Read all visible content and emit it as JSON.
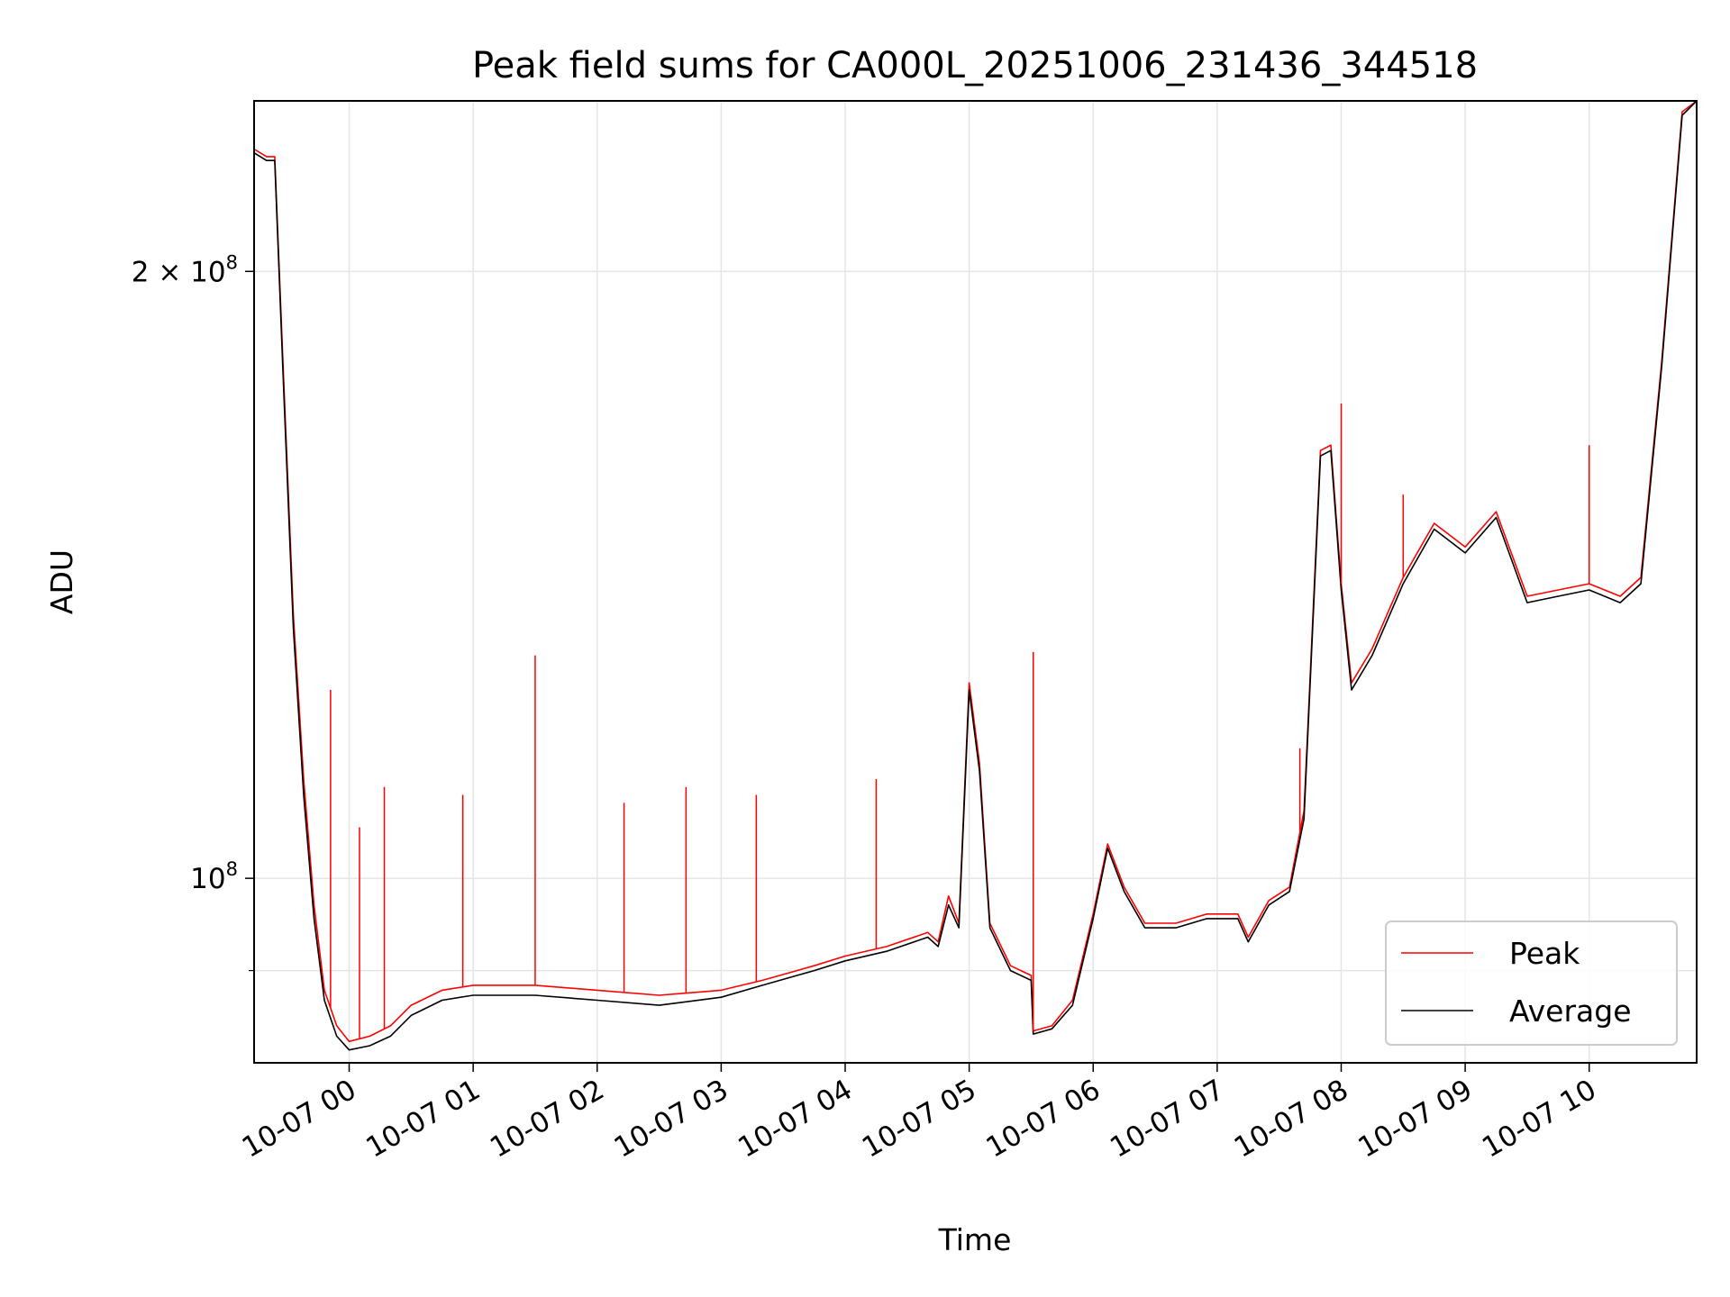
{
  "chart_data": {
    "type": "line",
    "title": "Peak field sums for CA000L_20251006_231436_344518",
    "xlabel": "Time",
    "ylabel": "ADU",
    "y_scale": "log",
    "ylim": [
      81000000,
      243000000
    ],
    "xlim": [
      "2025-10-06 23:14",
      "2025-10-07 10:52"
    ],
    "grid": true,
    "legend_position": "lower right",
    "x_ticks": [
      {
        "t": "2025-10-07 00:00",
        "label": "10-07 00"
      },
      {
        "t": "2025-10-07 01:00",
        "label": "10-07 01"
      },
      {
        "t": "2025-10-07 02:00",
        "label": "10-07 02"
      },
      {
        "t": "2025-10-07 03:00",
        "label": "10-07 03"
      },
      {
        "t": "2025-10-07 04:00",
        "label": "10-07 04"
      },
      {
        "t": "2025-10-07 05:00",
        "label": "10-07 05"
      },
      {
        "t": "2025-10-07 06:00",
        "label": "10-07 06"
      },
      {
        "t": "2025-10-07 07:00",
        "label": "10-07 07"
      },
      {
        "t": "2025-10-07 08:00",
        "label": "10-07 08"
      },
      {
        "t": "2025-10-07 09:00",
        "label": "10-07 09"
      },
      {
        "t": "2025-10-07 10:00",
        "label": "10-07 10"
      }
    ],
    "y_ticks": [
      {
        "v": 200000000,
        "label": "2 × 10",
        "exp": "8"
      },
      {
        "v": 100000000,
        "label": "10",
        "exp": "8"
      }
    ],
    "y_minor_ticks": [
      90000000
    ],
    "series": [
      {
        "name": "Peak",
        "color": "#ff0000",
        "points": [
          [
            "2025-10-06 23:14",
            230000000
          ],
          [
            "2025-10-06 23:20",
            228000000
          ],
          [
            "2025-10-06 23:24",
            228000000
          ],
          [
            "2025-10-06 23:28",
            180000000
          ],
          [
            "2025-10-06 23:33",
            135000000
          ],
          [
            "2025-10-06 23:38",
            112000000
          ],
          [
            "2025-10-06 23:43",
            97000000
          ],
          [
            "2025-10-06 23:48",
            88000000
          ],
          [
            "2025-10-06 23:54",
            84500000
          ],
          [
            "2025-10-07 00:00",
            83000000
          ],
          [
            "2025-10-07 00:10",
            83500000
          ],
          [
            "2025-10-07 00:20",
            84500000
          ],
          [
            "2025-10-07 00:30",
            86500000
          ],
          [
            "2025-10-07 00:45",
            88000000
          ],
          [
            "2025-10-07 01:00",
            88500000
          ],
          [
            "2025-10-07 01:30",
            88500000
          ],
          [
            "2025-10-07 02:00",
            88000000
          ],
          [
            "2025-10-07 02:30",
            87500000
          ],
          [
            "2025-10-07 03:00",
            88000000
          ],
          [
            "2025-10-07 03:20",
            89000000
          ],
          [
            "2025-10-07 03:45",
            90500000
          ],
          [
            "2025-10-07 04:00",
            91500000
          ],
          [
            "2025-10-07 04:20",
            92500000
          ],
          [
            "2025-10-07 04:40",
            94000000
          ],
          [
            "2025-10-07 04:45",
            93000000
          ],
          [
            "2025-10-07 04:50",
            98000000
          ],
          [
            "2025-10-07 04:55",
            95000000
          ],
          [
            "2025-10-07 05:00",
            125000000
          ],
          [
            "2025-10-07 05:05",
            114000000
          ],
          [
            "2025-10-07 05:10",
            95000000
          ],
          [
            "2025-10-07 05:20",
            90500000
          ],
          [
            "2025-10-07 05:30",
            89500000
          ],
          [
            "2025-10-07 05:31",
            84000000
          ],
          [
            "2025-10-07 05:40",
            84500000
          ],
          [
            "2025-10-07 05:50",
            87000000
          ],
          [
            "2025-10-07 06:00",
            96000000
          ],
          [
            "2025-10-07 06:07",
            104000000
          ],
          [
            "2025-10-07 06:15",
            99000000
          ],
          [
            "2025-10-07 06:25",
            95000000
          ],
          [
            "2025-10-07 06:40",
            95000000
          ],
          [
            "2025-10-07 06:55",
            96000000
          ],
          [
            "2025-10-07 07:10",
            96000000
          ],
          [
            "2025-10-07 07:15",
            93500000
          ],
          [
            "2025-10-07 07:25",
            97500000
          ],
          [
            "2025-10-07 07:35",
            99000000
          ],
          [
            "2025-10-07 07:42",
            108000000
          ],
          [
            "2025-10-07 07:50",
            163000000
          ],
          [
            "2025-10-07 07:55",
            164000000
          ],
          [
            "2025-10-07 08:00",
            140000000
          ],
          [
            "2025-10-07 08:05",
            125000000
          ],
          [
            "2025-10-07 08:15",
            130000000
          ],
          [
            "2025-10-07 08:30",
            141000000
          ],
          [
            "2025-10-07 08:45",
            150000000
          ],
          [
            "2025-10-07 09:00",
            146000000
          ],
          [
            "2025-10-07 09:15",
            152000000
          ],
          [
            "2025-10-07 09:30",
            138000000
          ],
          [
            "2025-10-07 09:45",
            139000000
          ],
          [
            "2025-10-07 10:00",
            140000000
          ],
          [
            "2025-10-07 10:15",
            138000000
          ],
          [
            "2025-10-07 10:25",
            141000000
          ],
          [
            "2025-10-07 10:35",
            180000000
          ],
          [
            "2025-10-07 10:45",
            240000000
          ],
          [
            "2025-10-07 10:52",
            243000000
          ]
        ],
        "spikes": [
          [
            "2025-10-06 23:51",
            124000000
          ],
          [
            "2025-10-07 00:05",
            106000000
          ],
          [
            "2025-10-07 00:17",
            111000000
          ],
          [
            "2025-10-07 00:55",
            110000000
          ],
          [
            "2025-10-07 01:30",
            129000000
          ],
          [
            "2025-10-07 02:13",
            109000000
          ],
          [
            "2025-10-07 02:43",
            111000000
          ],
          [
            "2025-10-07 03:17",
            110000000
          ],
          [
            "2025-10-07 04:15",
            112000000
          ],
          [
            "2025-10-07 05:31",
            129500000
          ],
          [
            "2025-10-07 07:40",
            116000000
          ],
          [
            "2025-10-07 08:00",
            172000000
          ],
          [
            "2025-10-07 08:30",
            155000000
          ],
          [
            "2025-10-07 10:00",
            164000000
          ]
        ]
      },
      {
        "name": "Average",
        "color": "#000000",
        "points": [
          [
            "2025-10-06 23:14",
            229000000
          ],
          [
            "2025-10-06 23:20",
            227000000
          ],
          [
            "2025-10-06 23:24",
            227000000
          ],
          [
            "2025-10-06 23:28",
            178000000
          ],
          [
            "2025-10-06 23:33",
            133000000
          ],
          [
            "2025-10-06 23:38",
            110000000
          ],
          [
            "2025-10-06 23:43",
            95500000
          ],
          [
            "2025-10-06 23:48",
            87000000
          ],
          [
            "2025-10-06 23:54",
            83500000
          ],
          [
            "2025-10-07 00:00",
            82200000
          ],
          [
            "2025-10-07 00:10",
            82600000
          ],
          [
            "2025-10-07 00:20",
            83500000
          ],
          [
            "2025-10-07 00:30",
            85500000
          ],
          [
            "2025-10-07 00:45",
            87000000
          ],
          [
            "2025-10-07 01:00",
            87500000
          ],
          [
            "2025-10-07 01:30",
            87500000
          ],
          [
            "2025-10-07 02:00",
            87000000
          ],
          [
            "2025-10-07 02:30",
            86500000
          ],
          [
            "2025-10-07 03:00",
            87300000
          ],
          [
            "2025-10-07 03:20",
            88500000
          ],
          [
            "2025-10-07 03:45",
            90000000
          ],
          [
            "2025-10-07 04:00",
            91000000
          ],
          [
            "2025-10-07 04:20",
            92000000
          ],
          [
            "2025-10-07 04:40",
            93500000
          ],
          [
            "2025-10-07 04:45",
            92500000
          ],
          [
            "2025-10-07 04:50",
            97000000
          ],
          [
            "2025-10-07 04:55",
            94500000
          ],
          [
            "2025-10-07 05:00",
            124000000
          ],
          [
            "2025-10-07 05:05",
            113000000
          ],
          [
            "2025-10-07 05:10",
            94500000
          ],
          [
            "2025-10-07 05:20",
            90000000
          ],
          [
            "2025-10-07 05:30",
            89000000
          ],
          [
            "2025-10-07 05:31",
            83700000
          ],
          [
            "2025-10-07 05:40",
            84200000
          ],
          [
            "2025-10-07 05:50",
            86500000
          ],
          [
            "2025-10-07 06:00",
            95500000
          ],
          [
            "2025-10-07 06:07",
            103500000
          ],
          [
            "2025-10-07 06:15",
            98500000
          ],
          [
            "2025-10-07 06:25",
            94500000
          ],
          [
            "2025-10-07 06:40",
            94500000
          ],
          [
            "2025-10-07 06:55",
            95500000
          ],
          [
            "2025-10-07 07:10",
            95500000
          ],
          [
            "2025-10-07 07:15",
            93000000
          ],
          [
            "2025-10-07 07:25",
            97000000
          ],
          [
            "2025-10-07 07:35",
            98500000
          ],
          [
            "2025-10-07 07:42",
            107000000
          ],
          [
            "2025-10-07 07:50",
            162000000
          ],
          [
            "2025-10-07 07:55",
            163000000
          ],
          [
            "2025-10-07 08:00",
            139000000
          ],
          [
            "2025-10-07 08:05",
            124000000
          ],
          [
            "2025-10-07 08:15",
            129000000
          ],
          [
            "2025-10-07 08:30",
            140000000
          ],
          [
            "2025-10-07 08:45",
            149000000
          ],
          [
            "2025-10-07 09:00",
            145000000
          ],
          [
            "2025-10-07 09:15",
            151000000
          ],
          [
            "2025-10-07 09:30",
            137000000
          ],
          [
            "2025-10-07 09:45",
            138000000
          ],
          [
            "2025-10-07 10:00",
            139000000
          ],
          [
            "2025-10-07 10:15",
            137000000
          ],
          [
            "2025-10-07 10:25",
            140000000
          ],
          [
            "2025-10-07 10:35",
            179000000
          ],
          [
            "2025-10-07 10:45",
            239000000
          ],
          [
            "2025-10-07 10:52",
            243000000
          ]
        ]
      }
    ]
  }
}
